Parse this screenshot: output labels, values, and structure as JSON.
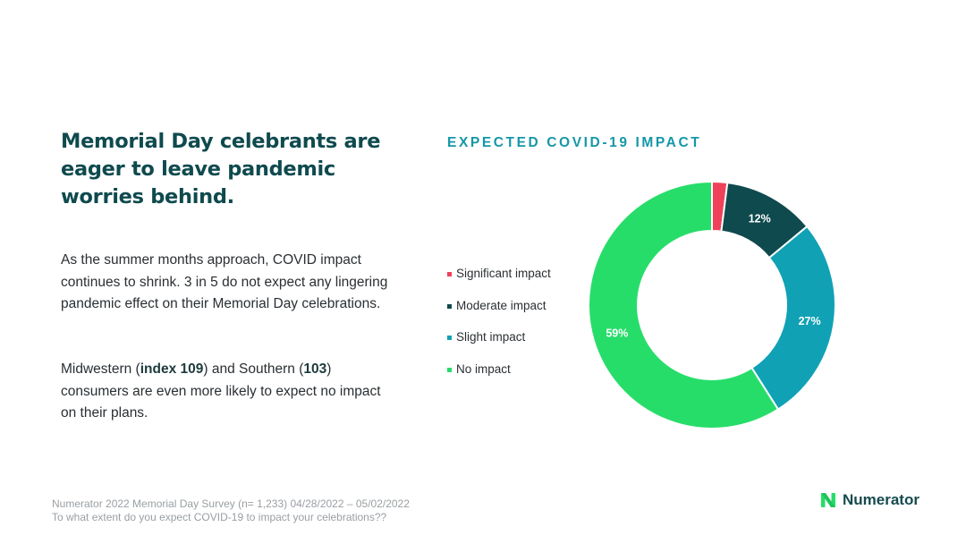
{
  "headline": "Memorial Day celebrants are eager to leave pandemic worries behind.",
  "paragraph1": "As the summer months approach, COVID impact continues to shrink. 3 in 5 do not expect any lingering pandemic effect on their Memorial Day celebrations.",
  "paragraph2": {
    "t1": "Midwestern (",
    "b1": "index 109",
    "t2": ") and Southern (",
    "b2": "103",
    "t3": ") consumers are even more likely to expect no impact on their plans."
  },
  "footnote": {
    "line1": "Numerator 2022 Memorial Day Survey (n= 1,233) 04/28/2022 – 05/02/2022",
    "line2": "To what extent do you expect COVID-19 to impact your celebrations??"
  },
  "brand": "Numerator",
  "chart_data": {
    "type": "pie",
    "donut": true,
    "title": "EXPECTED COVID-19 IMPACT",
    "categories": [
      "Significant impact",
      "Moderate impact",
      "Slight impact",
      "No impact"
    ],
    "values": [
      2,
      12,
      27,
      59
    ],
    "labels": [
      "",
      "12%",
      "27%",
      "59%"
    ],
    "colors": [
      "#f0415a",
      "#0f4a4e",
      "#10a1b5",
      "#27dd6a"
    ],
    "legend_position": "left"
  }
}
